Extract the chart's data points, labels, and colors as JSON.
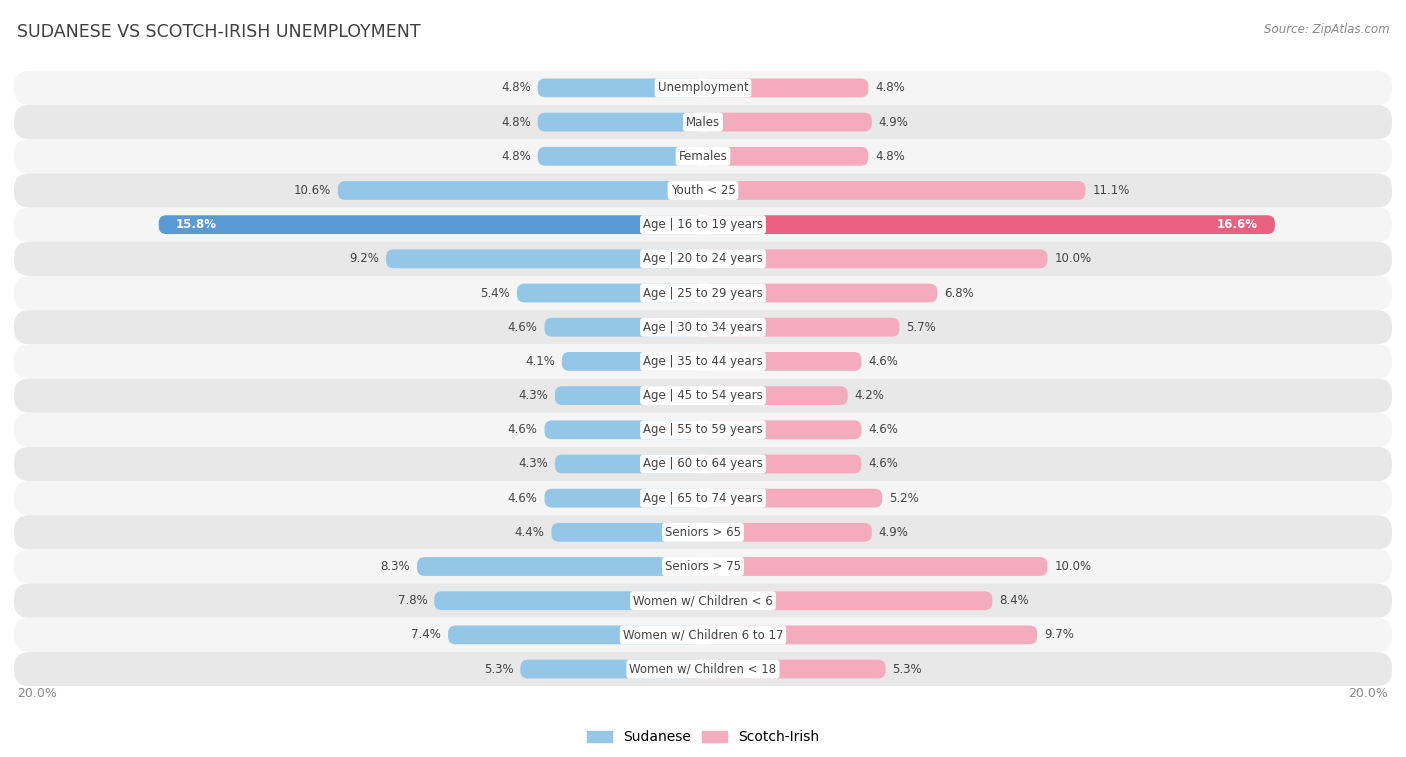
{
  "title": "SUDANESE VS SCOTCH-IRISH UNEMPLOYMENT",
  "source": "Source: ZipAtlas.com",
  "categories": [
    "Unemployment",
    "Males",
    "Females",
    "Youth < 25",
    "Age | 16 to 19 years",
    "Age | 20 to 24 years",
    "Age | 25 to 29 years",
    "Age | 30 to 34 years",
    "Age | 35 to 44 years",
    "Age | 45 to 54 years",
    "Age | 55 to 59 years",
    "Age | 60 to 64 years",
    "Age | 65 to 74 years",
    "Seniors > 65",
    "Seniors > 75",
    "Women w/ Children < 6",
    "Women w/ Children 6 to 17",
    "Women w/ Children < 18"
  ],
  "sudanese": [
    4.8,
    4.8,
    4.8,
    10.6,
    15.8,
    9.2,
    5.4,
    4.6,
    4.1,
    4.3,
    4.6,
    4.3,
    4.6,
    4.4,
    8.3,
    7.8,
    7.4,
    5.3
  ],
  "scotch_irish": [
    4.8,
    4.9,
    4.8,
    11.1,
    16.6,
    10.0,
    6.8,
    5.7,
    4.6,
    4.2,
    4.6,
    4.6,
    5.2,
    4.9,
    10.0,
    8.4,
    9.7,
    5.3
  ],
  "sudanese_color": "#94C6E7",
  "scotch_irish_color": "#F4ABBE",
  "highlight_sudanese_color": "#5B9BD5",
  "highlight_scotch_irish_color": "#E96080",
  "max_value": 20.0,
  "bg_color": "#FFFFFF",
  "row_bg_light": "#F0F0F0",
  "row_bg_dark": "#E2E2E2",
  "bar_height": 0.55,
  "label_color": "#444444",
  "title_color": "#404040",
  "axis_label_color": "#888888",
  "highlight_row_index": 4
}
